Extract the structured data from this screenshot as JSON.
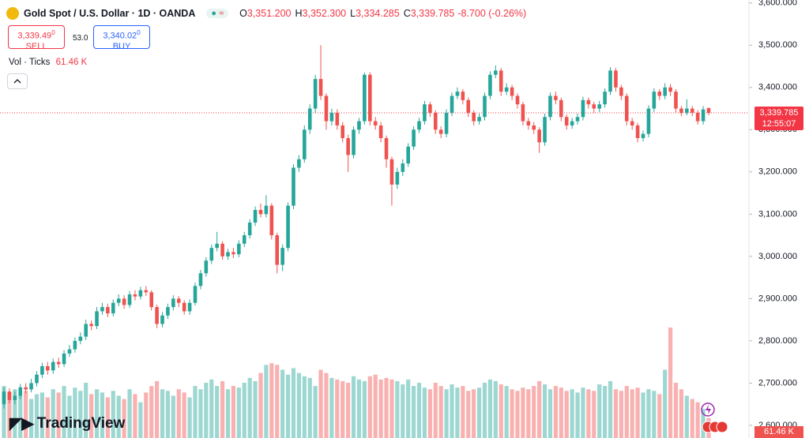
{
  "header": {
    "title": "Gold Spot / U.S. Dollar · 1D · OANDA",
    "ohlc": [
      {
        "key": "O",
        "value": "3,351.200"
      },
      {
        "key": "H",
        "value": "3,352.300"
      },
      {
        "key": "L",
        "value": "3,334.285"
      },
      {
        "key": "C",
        "value": "3,339.785"
      }
    ],
    "change": "-8.700 (-0.26%)",
    "sell": {
      "price": "3,339.49",
      "pip": "0",
      "label": "SELL"
    },
    "spread": "53.0",
    "buy": {
      "price": "3,340.02",
      "pip": "0",
      "label": "BUY"
    },
    "volume_legend": "Vol · Ticks",
    "volume_value": "61.46 K"
  },
  "price_label": {
    "price": "3,339.785",
    "countdown": "12:55:07"
  },
  "volume_badge": "61.46 K",
  "logo": "TradingView",
  "chart_data": {
    "type": "candlestick",
    "up_color": "#26a69a",
    "down_color": "#ef5350",
    "last_color": "#f23645",
    "grid": false,
    "open": [
      2650,
      2680,
      2660,
      2670,
      2690,
      2685,
      2700,
      2720,
      2740,
      2730,
      2750,
      2745,
      2770,
      2780,
      2800,
      2810,
      2840,
      2835,
      2870,
      2880,
      2865,
      2890,
      2900,
      2885,
      2910,
      2905,
      2920,
      2915,
      2880,
      2840,
      2860,
      2880,
      2900,
      2890,
      2870,
      2890,
      2930,
      2960,
      2990,
      3020,
      3030,
      3000,
      3010,
      3005,
      3030,
      3050,
      3080,
      3110,
      3100,
      3120,
      3050,
      2980,
      3020,
      3120,
      3210,
      3230,
      3300,
      3350,
      3420,
      3380,
      3320,
      3340,
      3310,
      3280,
      3240,
      3300,
      3320,
      3430,
      3320,
      3310,
      3280,
      3230,
      3170,
      3200,
      3220,
      3260,
      3300,
      3320,
      3360,
      3340,
      3300,
      3290,
      3340,
      3380,
      3390,
      3370,
      3340,
      3320,
      3330,
      3380,
      3430,
      3440,
      3390,
      3400,
      3380,
      3360,
      3320,
      3310,
      3300,
      3270,
      3330,
      3380,
      3370,
      3330,
      3310,
      3320,
      3330,
      3370,
      3360,
      3350,
      3360,
      3390,
      3440,
      3400,
      3380,
      3320,
      3310,
      3280,
      3290,
      3350,
      3390,
      3380,
      3400,
      3390,
      3350,
      3340,
      3350,
      3340,
      3320,
      3351.2
    ],
    "high": [
      2690,
      2688,
      2680,
      2698,
      2700,
      2710,
      2728,
      2748,
      2750,
      2758,
      2760,
      2778,
      2790,
      2808,
      2820,
      2850,
      2848,
      2880,
      2890,
      2888,
      2898,
      2910,
      2908,
      2918,
      2920,
      2928,
      2930,
      2920,
      2886,
      2868,
      2888,
      2908,
      2906,
      2896,
      2898,
      2938,
      2968,
      2998,
      3028,
      3058,
      3036,
      3018,
      3020,
      3038,
      3058,
      3088,
      3118,
      3125,
      3145,
      3126,
      3056,
      3028,
      3128,
      3218,
      3240,
      3310,
      3360,
      3430,
      3500,
      3386,
      3350,
      3348,
      3318,
      3288,
      3308,
      3328,
      3435,
      3436,
      3330,
      3318,
      3286,
      3236,
      3210,
      3230,
      3268,
      3308,
      3328,
      3368,
      3366,
      3346,
      3308,
      3348,
      3388,
      3400,
      3396,
      3376,
      3346,
      3338,
      3388,
      3438,
      3452,
      3446,
      3410,
      3406,
      3386,
      3366,
      3328,
      3318,
      3306,
      3338,
      3388,
      3390,
      3376,
      3336,
      3328,
      3338,
      3378,
      3376,
      3366,
      3368,
      3398,
      3448,
      3446,
      3406,
      3386,
      3328,
      3316,
      3298,
      3358,
      3398,
      3396,
      3410,
      3408,
      3396,
      3356,
      3372,
      3356,
      3346,
      3356,
      3352.3
    ],
    "low": [
      2640,
      2652,
      2650,
      2662,
      2676,
      2678,
      2692,
      2712,
      2720,
      2722,
      2736,
      2738,
      2762,
      2772,
      2792,
      2802,
      2825,
      2828,
      2862,
      2856,
      2858,
      2882,
      2876,
      2878,
      2896,
      2898,
      2906,
      2872,
      2830,
      2832,
      2852,
      2872,
      2880,
      2862,
      2862,
      2884,
      2922,
      2952,
      2982,
      3012,
      2992,
      2992,
      2996,
      2998,
      3022,
      3042,
      3072,
      3092,
      3092,
      3040,
      2960,
      2965,
      3012,
      3112,
      3200,
      3222,
      3290,
      3340,
      3370,
      3300,
      3310,
      3300,
      3270,
      3200,
      3232,
      3290,
      3312,
      3310,
      3300,
      3270,
      3210,
      3120,
      3160,
      3190,
      3212,
      3252,
      3292,
      3312,
      3330,
      3290,
      3280,
      3282,
      3332,
      3372,
      3360,
      3330,
      3310,
      3312,
      3322,
      3372,
      3422,
      3380,
      3382,
      3370,
      3350,
      3310,
      3300,
      3290,
      3245,
      3262,
      3322,
      3360,
      3320,
      3300,
      3302,
      3312,
      3322,
      3350,
      3340,
      3342,
      3352,
      3382,
      3390,
      3370,
      3310,
      3300,
      3270,
      3272,
      3282,
      3342,
      3370,
      3372,
      3380,
      3340,
      3332,
      3334,
      3332,
      3312,
      3312,
      3334.285
    ],
    "close": [
      2680,
      2660,
      2670,
      2690,
      2685,
      2700,
      2720,
      2740,
      2730,
      2750,
      2745,
      2770,
      2780,
      2800,
      2810,
      2840,
      2835,
      2870,
      2880,
      2865,
      2890,
      2900,
      2885,
      2910,
      2905,
      2920,
      2915,
      2880,
      2840,
      2860,
      2880,
      2900,
      2890,
      2870,
      2890,
      2930,
      2960,
      2990,
      3020,
      3030,
      3000,
      3010,
      3005,
      3030,
      3050,
      3080,
      3110,
      3100,
      3120,
      3050,
      2980,
      3020,
      3120,
      3210,
      3230,
      3300,
      3350,
      3420,
      3380,
      3320,
      3340,
      3310,
      3280,
      3240,
      3300,
      3320,
      3430,
      3320,
      3310,
      3280,
      3230,
      3170,
      3200,
      3220,
      3260,
      3300,
      3320,
      3360,
      3340,
      3300,
      3290,
      3340,
      3380,
      3390,
      3370,
      3340,
      3320,
      3330,
      3380,
      3430,
      3440,
      3390,
      3400,
      3380,
      3360,
      3320,
      3310,
      3300,
      3270,
      3330,
      3380,
      3370,
      3330,
      3310,
      3320,
      3330,
      3370,
      3360,
      3350,
      3360,
      3390,
      3440,
      3400,
      3380,
      3320,
      3310,
      3280,
      3290,
      3350,
      3390,
      3380,
      3400,
      3390,
      3350,
      3340,
      3350,
      3340,
      3320,
      3348,
      3339.785
    ],
    "volume": [
      160,
      140,
      150,
      130,
      145,
      120,
      135,
      140,
      125,
      150,
      140,
      160,
      130,
      155,
      145,
      170,
      135,
      150,
      140,
      125,
      145,
      130,
      120,
      150,
      135,
      110,
      140,
      160,
      175,
      150,
      145,
      130,
      150,
      140,
      125,
      160,
      150,
      170,
      180,
      160,
      175,
      150,
      160,
      155,
      170,
      185,
      175,
      200,
      225,
      230,
      225,
      210,
      195,
      215,
      200,
      190,
      185,
      160,
      210,
      200,
      185,
      180,
      175,
      170,
      190,
      180,
      175,
      190,
      195,
      180,
      185,
      180,
      175,
      165,
      180,
      160,
      170,
      155,
      150,
      170,
      160,
      150,
      165,
      155,
      160,
      145,
      150,
      155,
      170,
      180,
      175,
      165,
      160,
      150,
      145,
      155,
      150,
      160,
      175,
      165,
      150,
      160,
      155,
      145,
      150,
      140,
      155,
      150,
      145,
      165,
      160,
      175,
      150,
      145,
      160,
      150,
      155,
      140,
      150,
      145,
      135,
      210,
      340,
      170,
      150,
      130,
      120,
      110,
      90,
      61.46
    ],
    "ylim": [
      2570,
      3607
    ],
    "yticks": [
      {
        "value": 2600,
        "label": "2,600.000"
      },
      {
        "value": 2700,
        "label": "2,700.000"
      },
      {
        "value": 2800,
        "label": "2,800.000"
      },
      {
        "value": 2900,
        "label": "2,900.000"
      },
      {
        "value": 3000,
        "label": "3,000.000"
      },
      {
        "value": 3100,
        "label": "3,100.000"
      },
      {
        "value": 3200,
        "label": "3,200.000"
      },
      {
        "value": 3300,
        "label": "3,300.000"
      },
      {
        "value": 3400,
        "label": "3,400.000"
      },
      {
        "value": 3500,
        "label": "3,500.000"
      },
      {
        "value": 3600,
        "label": "3,600.000"
      }
    ]
  }
}
